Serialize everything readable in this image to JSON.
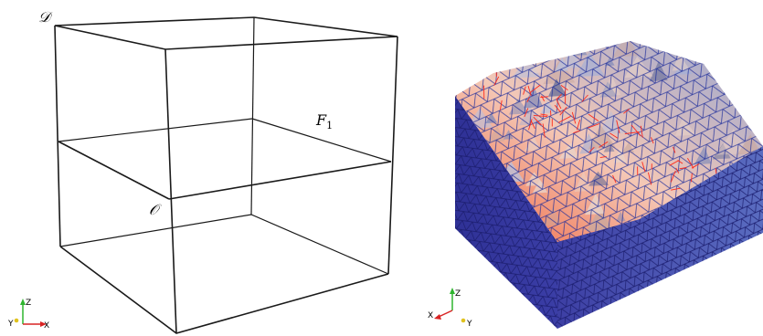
{
  "left_figure": {
    "labels": {
      "domain": "𝒟",
      "origin": "𝒪",
      "face": "F",
      "face_sub": "1"
    },
    "axes_triad": {
      "z": "Z",
      "y": "Y",
      "x": "X"
    },
    "line_color": "#1a1a1a"
  },
  "right_figure": {
    "axes_triad": {
      "z": "Z",
      "x": "X",
      "y": "Y"
    },
    "colors": {
      "mesh_edges": "#1a2a9a",
      "highlight_edges": "#ff2a1a",
      "surface_light": "#f2c7b6",
      "surface_blue": "#9aa6cf",
      "side_fill": "#3a3fa8"
    }
  }
}
